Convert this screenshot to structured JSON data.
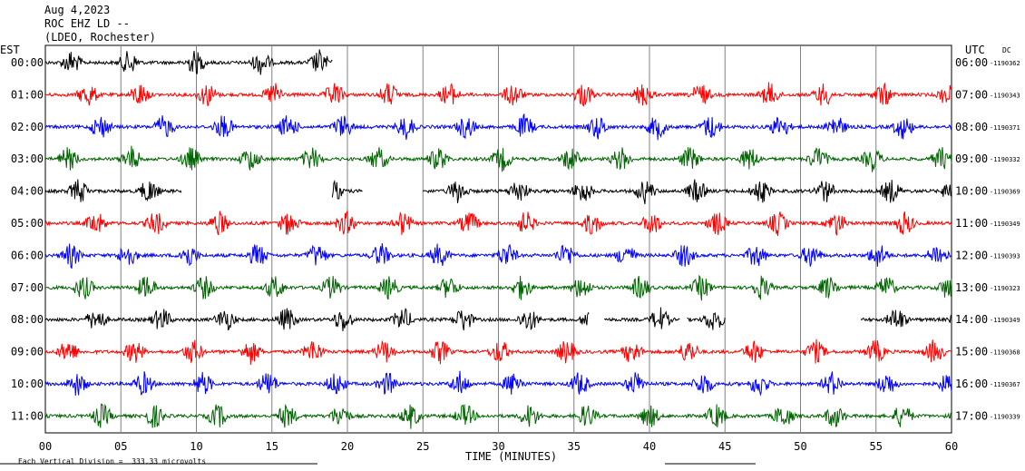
{
  "header": {
    "date": "Aug 4,2023",
    "station": "ROC EHZ LD --",
    "network": "(LDEO, Rochester)"
  },
  "left_tz": "EST",
  "right_tz": "UTC",
  "dc_label": "DC",
  "footer_note": "Each Vertical Division =  333.33 microvolts",
  "colors": {
    "black": "#000000",
    "red": "#ff0000",
    "blue": "#0000ff",
    "green": "#006400",
    "grid": "#808080"
  },
  "chart_data": {
    "type": "line",
    "title": "Aug 4,2023  ROC EHZ LD --  (LDEO, Rochester)",
    "xlabel": "TIME (MINUTES)",
    "x_ticks": [
      "00",
      "05",
      "10",
      "15",
      "20",
      "25",
      "30",
      "35",
      "40",
      "45",
      "50",
      "55",
      "60"
    ],
    "xlim": [
      0,
      60
    ],
    "grid": true,
    "series": [
      {
        "left_time": "00:00",
        "right_time": "06:00",
        "dc_offset": "-1190362",
        "color": "black",
        "segments": [
          [
            0,
            19
          ]
        ]
      },
      {
        "left_time": "01:00",
        "right_time": "07:00",
        "dc_offset": "-1190343",
        "color": "red",
        "segments": [
          [
            0,
            60
          ]
        ]
      },
      {
        "left_time": "02:00",
        "right_time": "08:00",
        "dc_offset": "-1190371",
        "color": "blue",
        "segments": [
          [
            0,
            60
          ]
        ]
      },
      {
        "left_time": "03:00",
        "right_time": "09:00",
        "dc_offset": "-1190332",
        "color": "green",
        "segments": [
          [
            0,
            60
          ]
        ]
      },
      {
        "left_time": "04:00",
        "right_time": "10:00",
        "dc_offset": "-1190369",
        "color": "black",
        "segments": [
          [
            0,
            9
          ],
          [
            19,
            21
          ],
          [
            25,
            60
          ]
        ]
      },
      {
        "left_time": "05:00",
        "right_time": "11:00",
        "dc_offset": "-1190349",
        "color": "red",
        "segments": [
          [
            0,
            60
          ]
        ]
      },
      {
        "left_time": "06:00",
        "right_time": "12:00",
        "dc_offset": "-1190393",
        "color": "blue",
        "segments": [
          [
            0,
            60
          ]
        ]
      },
      {
        "left_time": "07:00",
        "right_time": "13:00",
        "dc_offset": "-1190323",
        "color": "green",
        "segments": [
          [
            0,
            60
          ]
        ]
      },
      {
        "left_time": "08:00",
        "right_time": "14:00",
        "dc_offset": "-1190349",
        "color": "black",
        "segments": [
          [
            0,
            36
          ],
          [
            37,
            42
          ],
          [
            42.5,
            45
          ],
          [
            54,
            60
          ]
        ]
      },
      {
        "left_time": "09:00",
        "right_time": "15:00",
        "dc_offset": "-1190368",
        "color": "red",
        "segments": [
          [
            0,
            60
          ]
        ]
      },
      {
        "left_time": "10:00",
        "right_time": "16:00",
        "dc_offset": "-1190367",
        "color": "blue",
        "segments": [
          [
            0,
            60
          ]
        ]
      },
      {
        "left_time": "11:00",
        "right_time": "17:00",
        "dc_offset": "-1190339",
        "color": "green",
        "segments": [
          [
            0,
            60
          ]
        ]
      }
    ]
  }
}
